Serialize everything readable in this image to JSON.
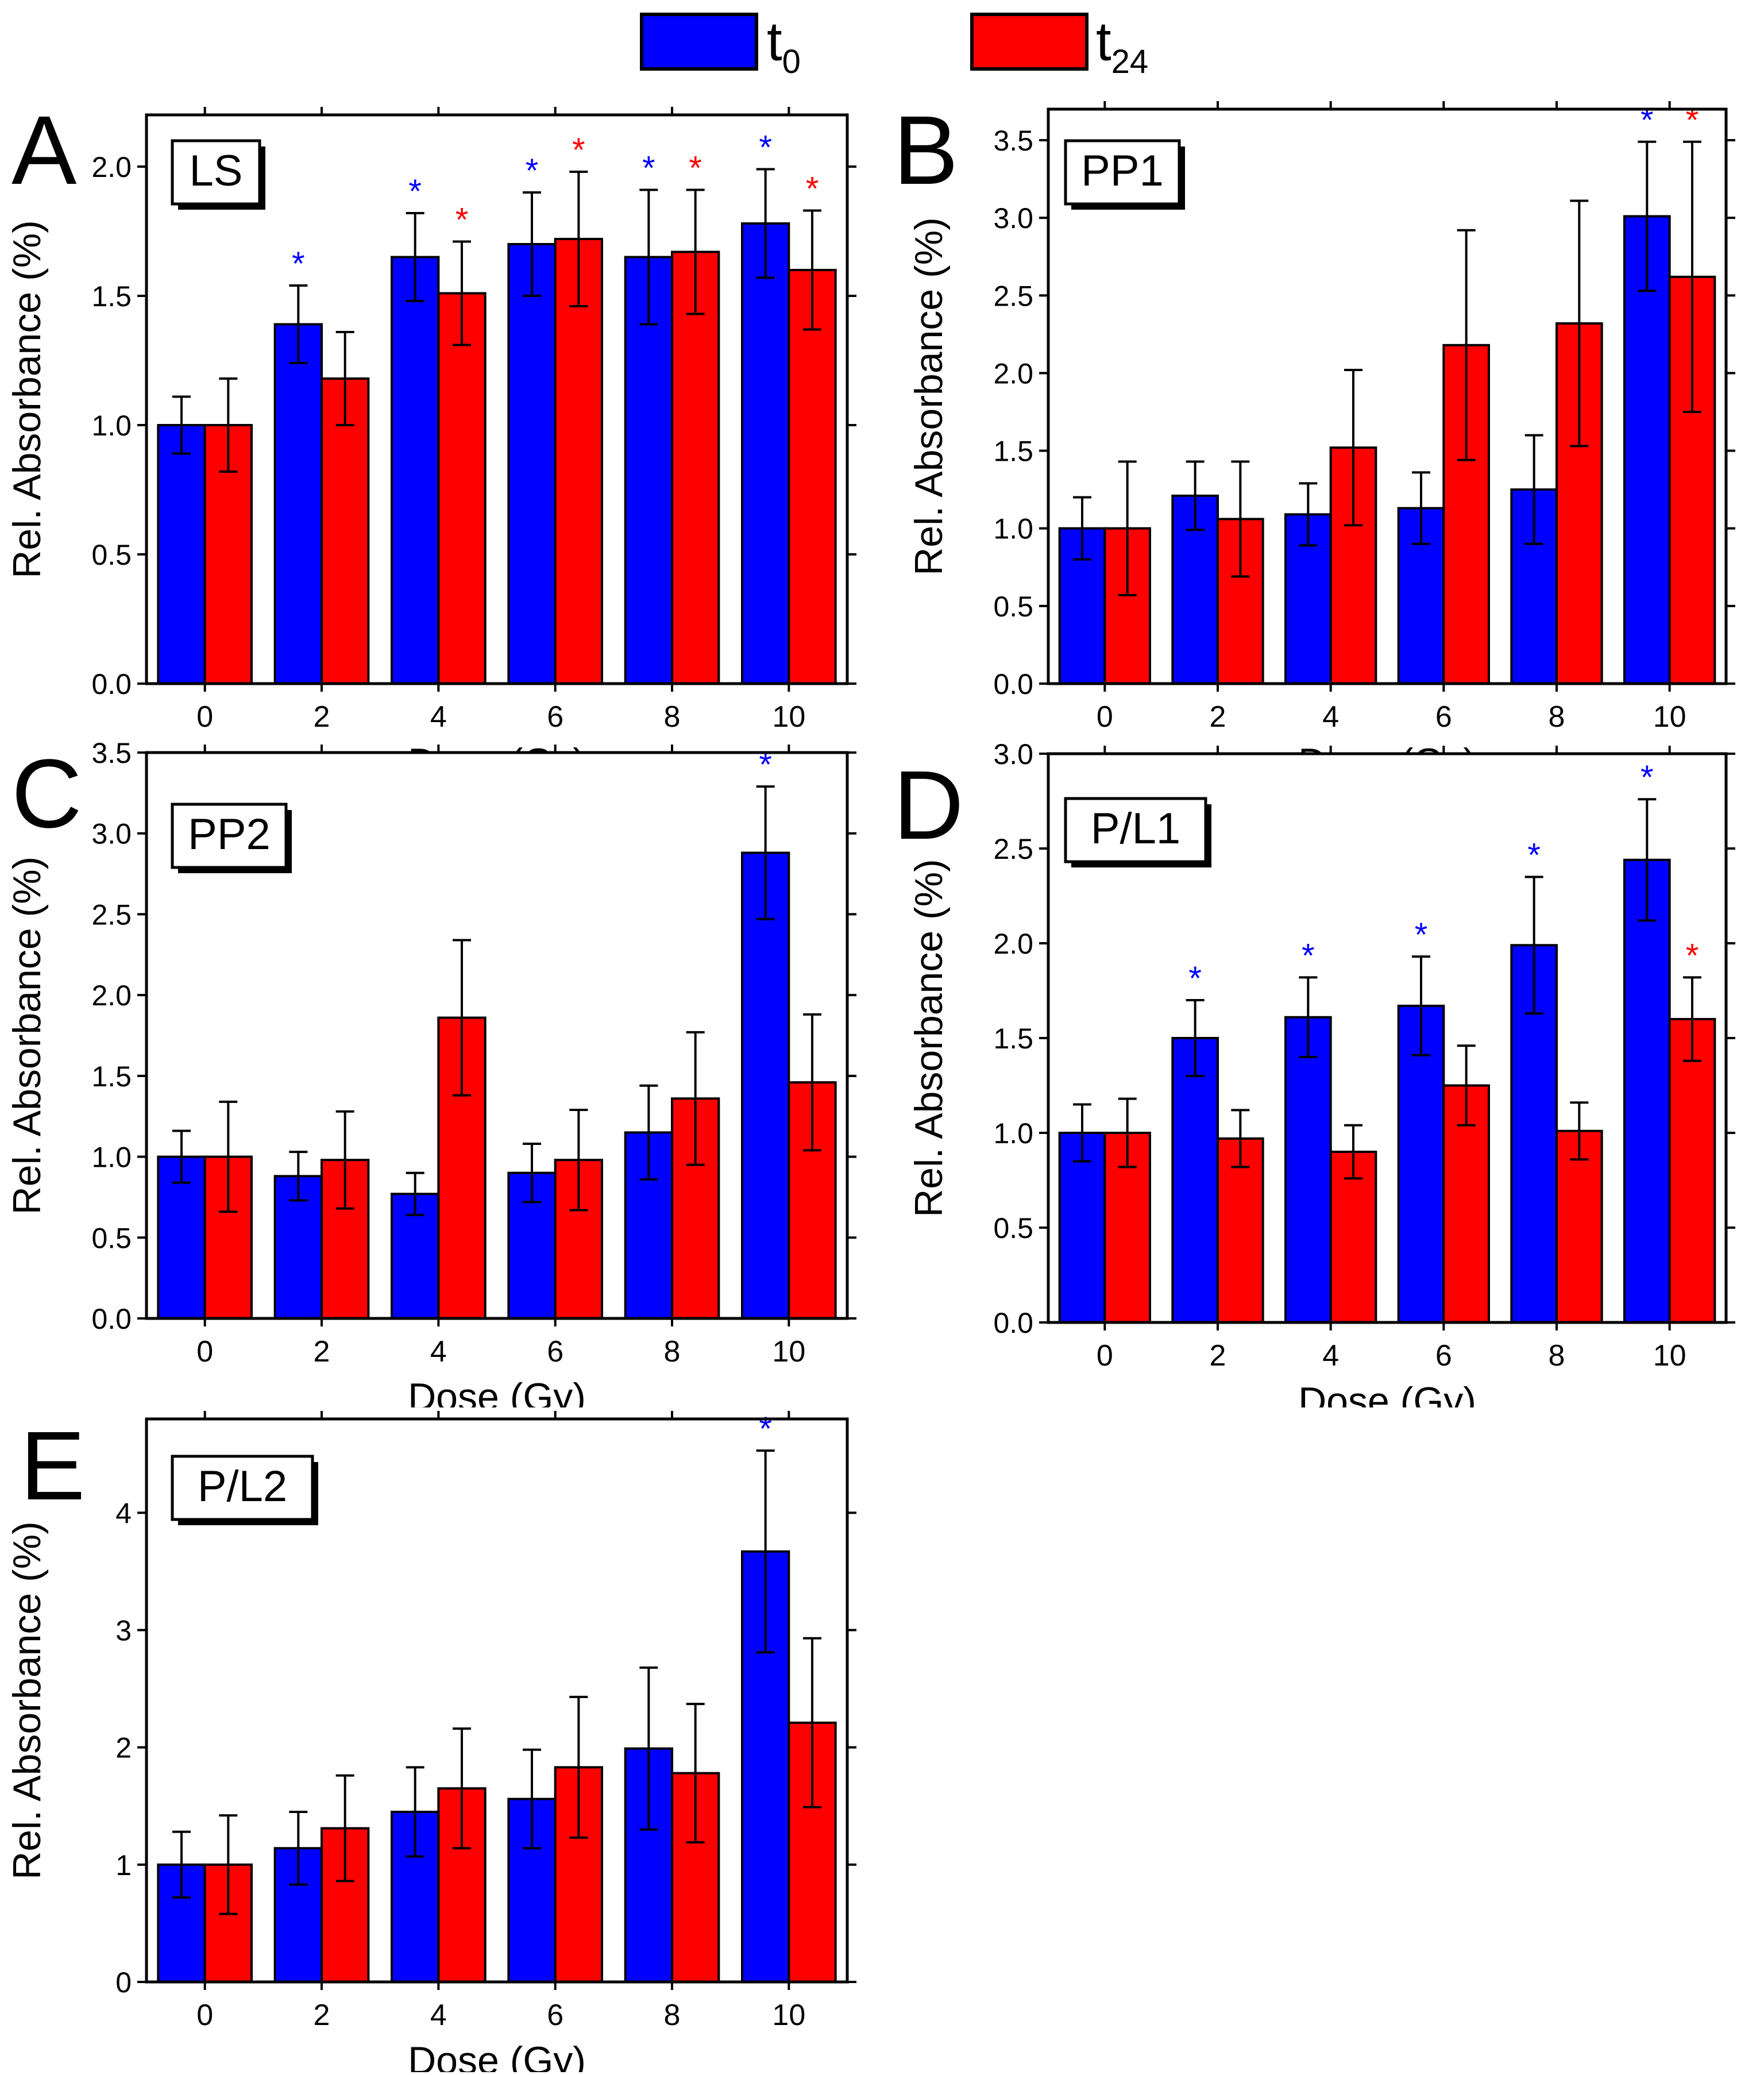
{
  "legend": {
    "items": [
      {
        "label": "t",
        "sub": "0",
        "color": "#0000ff"
      },
      {
        "label": "t",
        "sub": "24",
        "color": "#ff0000"
      }
    ]
  },
  "chart_data": [
    {
      "type": "bar",
      "panel_letter": "A",
      "panel_name": "LS",
      "xlabel": "Dose (Gy)",
      "ylabel": "Rel. Absorbance (%)",
      "categories": [
        "0",
        "2",
        "4",
        "6",
        "8",
        "10"
      ],
      "ylim": [
        0,
        2.2
      ],
      "yticks": [
        0.0,
        0.5,
        1.0,
        1.5,
        2.0
      ],
      "ytick_labels": [
        "0.0",
        "0.5",
        "1.0",
        "1.5",
        "2.0"
      ],
      "series": [
        {
          "name": "t0",
          "color": "#0000ff",
          "values": [
            1.0,
            1.39,
            1.65,
            1.7,
            1.65,
            1.78
          ],
          "errors": [
            0.11,
            0.15,
            0.17,
            0.2,
            0.26,
            0.21
          ],
          "significant": [
            false,
            true,
            true,
            true,
            true,
            true
          ]
        },
        {
          "name": "t24",
          "color": "#ff0000",
          "values": [
            1.0,
            1.18,
            1.51,
            1.72,
            1.67,
            1.6
          ],
          "errors": [
            0.18,
            0.18,
            0.2,
            0.26,
            0.24,
            0.23
          ],
          "significant": [
            false,
            false,
            true,
            true,
            true,
            true
          ]
        }
      ]
    },
    {
      "type": "bar",
      "panel_letter": "B",
      "panel_name": "PP1",
      "xlabel": "Dose (Gy)",
      "ylabel": "Rel. Absorbance (%)",
      "categories": [
        "0",
        "2",
        "4",
        "6",
        "8",
        "10"
      ],
      "ylim": [
        0,
        3.7
      ],
      "yticks": [
        0.0,
        0.5,
        1.0,
        1.5,
        2.0,
        2.5,
        3.0,
        3.5
      ],
      "ytick_labels": [
        "0.0",
        "0.5",
        "1.0",
        "1.5",
        "2.0",
        "2.5",
        "3.0",
        "3.5"
      ],
      "series": [
        {
          "name": "t0",
          "color": "#0000ff",
          "values": [
            1.0,
            1.21,
            1.09,
            1.13,
            1.25,
            3.01
          ],
          "errors": [
            0.2,
            0.22,
            0.2,
            0.23,
            0.35,
            0.48
          ],
          "significant": [
            false,
            false,
            false,
            false,
            false,
            true
          ]
        },
        {
          "name": "t24",
          "color": "#ff0000",
          "values": [
            1.0,
            1.06,
            1.52,
            2.18,
            2.32,
            2.62
          ],
          "errors": [
            0.43,
            0.37,
            0.5,
            0.74,
            0.79,
            0.87
          ],
          "significant": [
            false,
            false,
            false,
            false,
            false,
            true
          ]
        }
      ]
    },
    {
      "type": "bar",
      "panel_letter": "C",
      "panel_name": "PP2",
      "xlabel": "Dose (Gy)",
      "ylabel": "Rel. Absorbance (%)",
      "categories": [
        "0",
        "2",
        "4",
        "6",
        "8",
        "10"
      ],
      "ylim": [
        0,
        3.5
      ],
      "yticks": [
        0.0,
        0.5,
        1.0,
        1.5,
        2.0,
        2.5,
        3.0,
        3.5
      ],
      "ytick_labels": [
        "0.0",
        "0.5",
        "1.0",
        "1.5",
        "2.0",
        "2.5",
        "3.0",
        "3.5"
      ],
      "series": [
        {
          "name": "t0",
          "color": "#0000ff",
          "values": [
            1.0,
            0.88,
            0.77,
            0.9,
            1.15,
            2.88
          ],
          "errors": [
            0.16,
            0.15,
            0.13,
            0.18,
            0.29,
            0.41
          ],
          "significant": [
            false,
            false,
            false,
            false,
            false,
            true
          ]
        },
        {
          "name": "t24",
          "color": "#ff0000",
          "values": [
            1.0,
            0.98,
            1.86,
            0.98,
            1.36,
            1.46
          ],
          "errors": [
            0.34,
            0.3,
            0.48,
            0.31,
            0.41,
            0.42
          ],
          "significant": [
            false,
            false,
            false,
            false,
            false,
            false
          ]
        }
      ]
    },
    {
      "type": "bar",
      "panel_letter": "D",
      "panel_name": "P/L1",
      "xlabel": "Dose (Gy)",
      "ylabel": "Rel. Absorbance (%)",
      "categories": [
        "0",
        "2",
        "4",
        "6",
        "8",
        "10"
      ],
      "ylim": [
        0,
        3.0
      ],
      "yticks": [
        0.0,
        0.5,
        1.0,
        1.5,
        2.0,
        2.5,
        3.0
      ],
      "ytick_labels": [
        "0.0",
        "0.5",
        "1.0",
        "1.5",
        "2.0",
        "2.5",
        "3.0"
      ],
      "series": [
        {
          "name": "t0",
          "color": "#0000ff",
          "values": [
            1.0,
            1.5,
            1.61,
            1.67,
            1.99,
            2.44
          ],
          "errors": [
            0.15,
            0.2,
            0.21,
            0.26,
            0.36,
            0.32
          ],
          "significant": [
            false,
            true,
            true,
            true,
            true,
            true
          ]
        },
        {
          "name": "t24",
          "color": "#ff0000",
          "values": [
            1.0,
            0.97,
            0.9,
            1.25,
            1.01,
            1.6
          ],
          "errors": [
            0.18,
            0.15,
            0.14,
            0.21,
            0.15,
            0.22
          ],
          "significant": [
            false,
            false,
            false,
            false,
            false,
            true
          ]
        }
      ]
    },
    {
      "type": "bar",
      "panel_letter": "E",
      "panel_name": "P/L2",
      "xlabel": "Dose (Gy)",
      "ylabel": "Rel. Absorbance (%)",
      "categories": [
        "0",
        "2",
        "4",
        "6",
        "8",
        "10"
      ],
      "ylim": [
        0,
        4.8
      ],
      "yticks": [
        0,
        1,
        2,
        3,
        4
      ],
      "ytick_labels": [
        "0",
        "1",
        "2",
        "3",
        "4"
      ],
      "series": [
        {
          "name": "t0",
          "color": "#0000ff",
          "values": [
            1.0,
            1.14,
            1.45,
            1.56,
            1.99,
            3.67
          ],
          "errors": [
            0.28,
            0.31,
            0.38,
            0.42,
            0.69,
            0.86
          ],
          "significant": [
            false,
            false,
            false,
            false,
            false,
            true
          ]
        },
        {
          "name": "t24",
          "color": "#ff0000",
          "values": [
            1.0,
            1.31,
            1.65,
            1.83,
            1.78,
            2.21
          ],
          "errors": [
            0.42,
            0.45,
            0.51,
            0.6,
            0.59,
            0.72
          ],
          "significant": [
            false,
            false,
            false,
            false,
            false,
            false
          ]
        }
      ]
    }
  ]
}
